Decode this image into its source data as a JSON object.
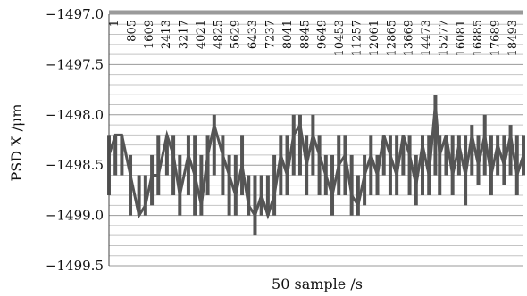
{
  "chart_data": {
    "type": "line",
    "title": "",
    "xlabel": "50 sample /s",
    "ylabel": "PSD X /μm",
    "ylim": [
      -1499.5,
      -1497.0
    ],
    "yticks": [
      -1497.0,
      -1497.5,
      -1498.0,
      -1498.5,
      -1499.0,
      -1499.5
    ],
    "ytick_labels": [
      "−1497.0",
      "−1497.5",
      "−1498.0",
      "−1498.5",
      "−1499.0",
      "−1499.5"
    ],
    "x_tick_labels": [
      "1",
      "805",
      "1609",
      "2413",
      "3217",
      "4021",
      "4825",
      "5629",
      "6433",
      "7237",
      "8041",
      "8845",
      "9649",
      "10453",
      "11257",
      "12061",
      "12865",
      "13669",
      "14473",
      "15277",
      "16081",
      "16885",
      "17689",
      "18493"
    ],
    "xlim": [
      1,
      19300
    ],
    "minor_grid_step": 0.1,
    "grid": true,
    "x_axis_position": "top",
    "series": [
      {
        "color": "#555555",
        "x": [
          1,
          300,
          600,
          1000,
          1400,
          1700,
          2000,
          2300,
          2700,
          3000,
          3300,
          3700,
          4000,
          4300,
          4600,
          4900,
          5300,
          5600,
          5900,
          6200,
          6500,
          6800,
          7100,
          7400,
          7700,
          8000,
          8300,
          8600,
          8900,
          9200,
          9500,
          9800,
          10100,
          10400,
          10700,
          11000,
          11300,
          11600,
          11900,
          12200,
          12500,
          12800,
          13100,
          13400,
          13700,
          14000,
          14300,
          14600,
          14900,
          15200,
          15400,
          15700,
          16000,
          16300,
          16600,
          16900,
          17200,
          17500,
          17800,
          18100,
          18400,
          18700,
          19000,
          19300
        ],
        "y": [
          -1498.4,
          -1498.2,
          -1498.2,
          -1498.6,
          -1499.0,
          -1498.9,
          -1498.6,
          -1498.6,
          -1498.2,
          -1498.4,
          -1498.8,
          -1498.4,
          -1498.6,
          -1498.9,
          -1498.4,
          -1498.1,
          -1498.4,
          -1498.6,
          -1498.8,
          -1498.5,
          -1498.9,
          -1499.0,
          -1498.8,
          -1499.0,
          -1498.8,
          -1498.4,
          -1498.6,
          -1498.2,
          -1498.1,
          -1498.5,
          -1498.2,
          -1498.4,
          -1498.6,
          -1498.8,
          -1498.5,
          -1498.4,
          -1498.8,
          -1498.9,
          -1498.6,
          -1498.4,
          -1498.6,
          -1498.2,
          -1498.4,
          -1498.6,
          -1498.2,
          -1498.4,
          -1498.7,
          -1498.3,
          -1498.6,
          -1497.9,
          -1498.4,
          -1498.2,
          -1498.6,
          -1498.3,
          -1498.6,
          -1498.2,
          -1498.5,
          -1498.2,
          -1498.6,
          -1498.3,
          -1498.5,
          -1498.2,
          -1498.6,
          -1498.4
        ],
        "min": [
          -1498.8,
          -1498.6,
          -1498.6,
          -1499.0,
          -1499.0,
          -1499.0,
          -1498.9,
          -1498.8,
          -1498.6,
          -1498.8,
          -1499.0,
          -1498.8,
          -1499.0,
          -1499.0,
          -1498.8,
          -1498.6,
          -1498.8,
          -1499.0,
          -1499.0,
          -1498.8,
          -1499.0,
          -1499.2,
          -1499.0,
          -1499.0,
          -1499.0,
          -1498.8,
          -1498.8,
          -1498.6,
          -1498.6,
          -1498.8,
          -1498.6,
          -1498.8,
          -1498.8,
          -1499.0,
          -1498.8,
          -1498.8,
          -1499.0,
          -1499.0,
          -1498.9,
          -1498.8,
          -1498.8,
          -1498.6,
          -1498.8,
          -1498.8,
          -1498.6,
          -1498.8,
          -1498.9,
          -1498.8,
          -1498.8,
          -1498.6,
          -1498.8,
          -1498.6,
          -1498.8,
          -1498.6,
          -1498.9,
          -1498.6,
          -1498.7,
          -1498.6,
          -1498.8,
          -1498.6,
          -1498.7,
          -1498.6,
          -1498.8,
          -1498.6
        ],
        "max": [
          -1498.2,
          -1498.2,
          -1498.2,
          -1498.4,
          -1498.6,
          -1498.6,
          -1498.4,
          -1498.2,
          -1498.2,
          -1498.2,
          -1498.4,
          -1498.2,
          -1498.2,
          -1498.4,
          -1498.2,
          -1498.0,
          -1498.2,
          -1498.4,
          -1498.4,
          -1498.2,
          -1498.6,
          -1498.6,
          -1498.6,
          -1498.6,
          -1498.4,
          -1498.2,
          -1498.2,
          -1498.0,
          -1498.0,
          -1498.2,
          -1498.0,
          -1498.2,
          -1498.4,
          -1498.4,
          -1498.2,
          -1498.2,
          -1498.4,
          -1498.6,
          -1498.4,
          -1498.2,
          -1498.4,
          -1498.2,
          -1498.2,
          -1498.2,
          -1498.2,
          -1498.2,
          -1498.4,
          -1498.2,
          -1498.2,
          -1497.8,
          -1498.2,
          -1498.2,
          -1498.2,
          -1498.2,
          -1498.2,
          -1498.1,
          -1498.2,
          -1498.0,
          -1498.2,
          -1498.2,
          -1498.2,
          -1498.1,
          -1498.2,
          -1498.2
        ]
      }
    ]
  }
}
